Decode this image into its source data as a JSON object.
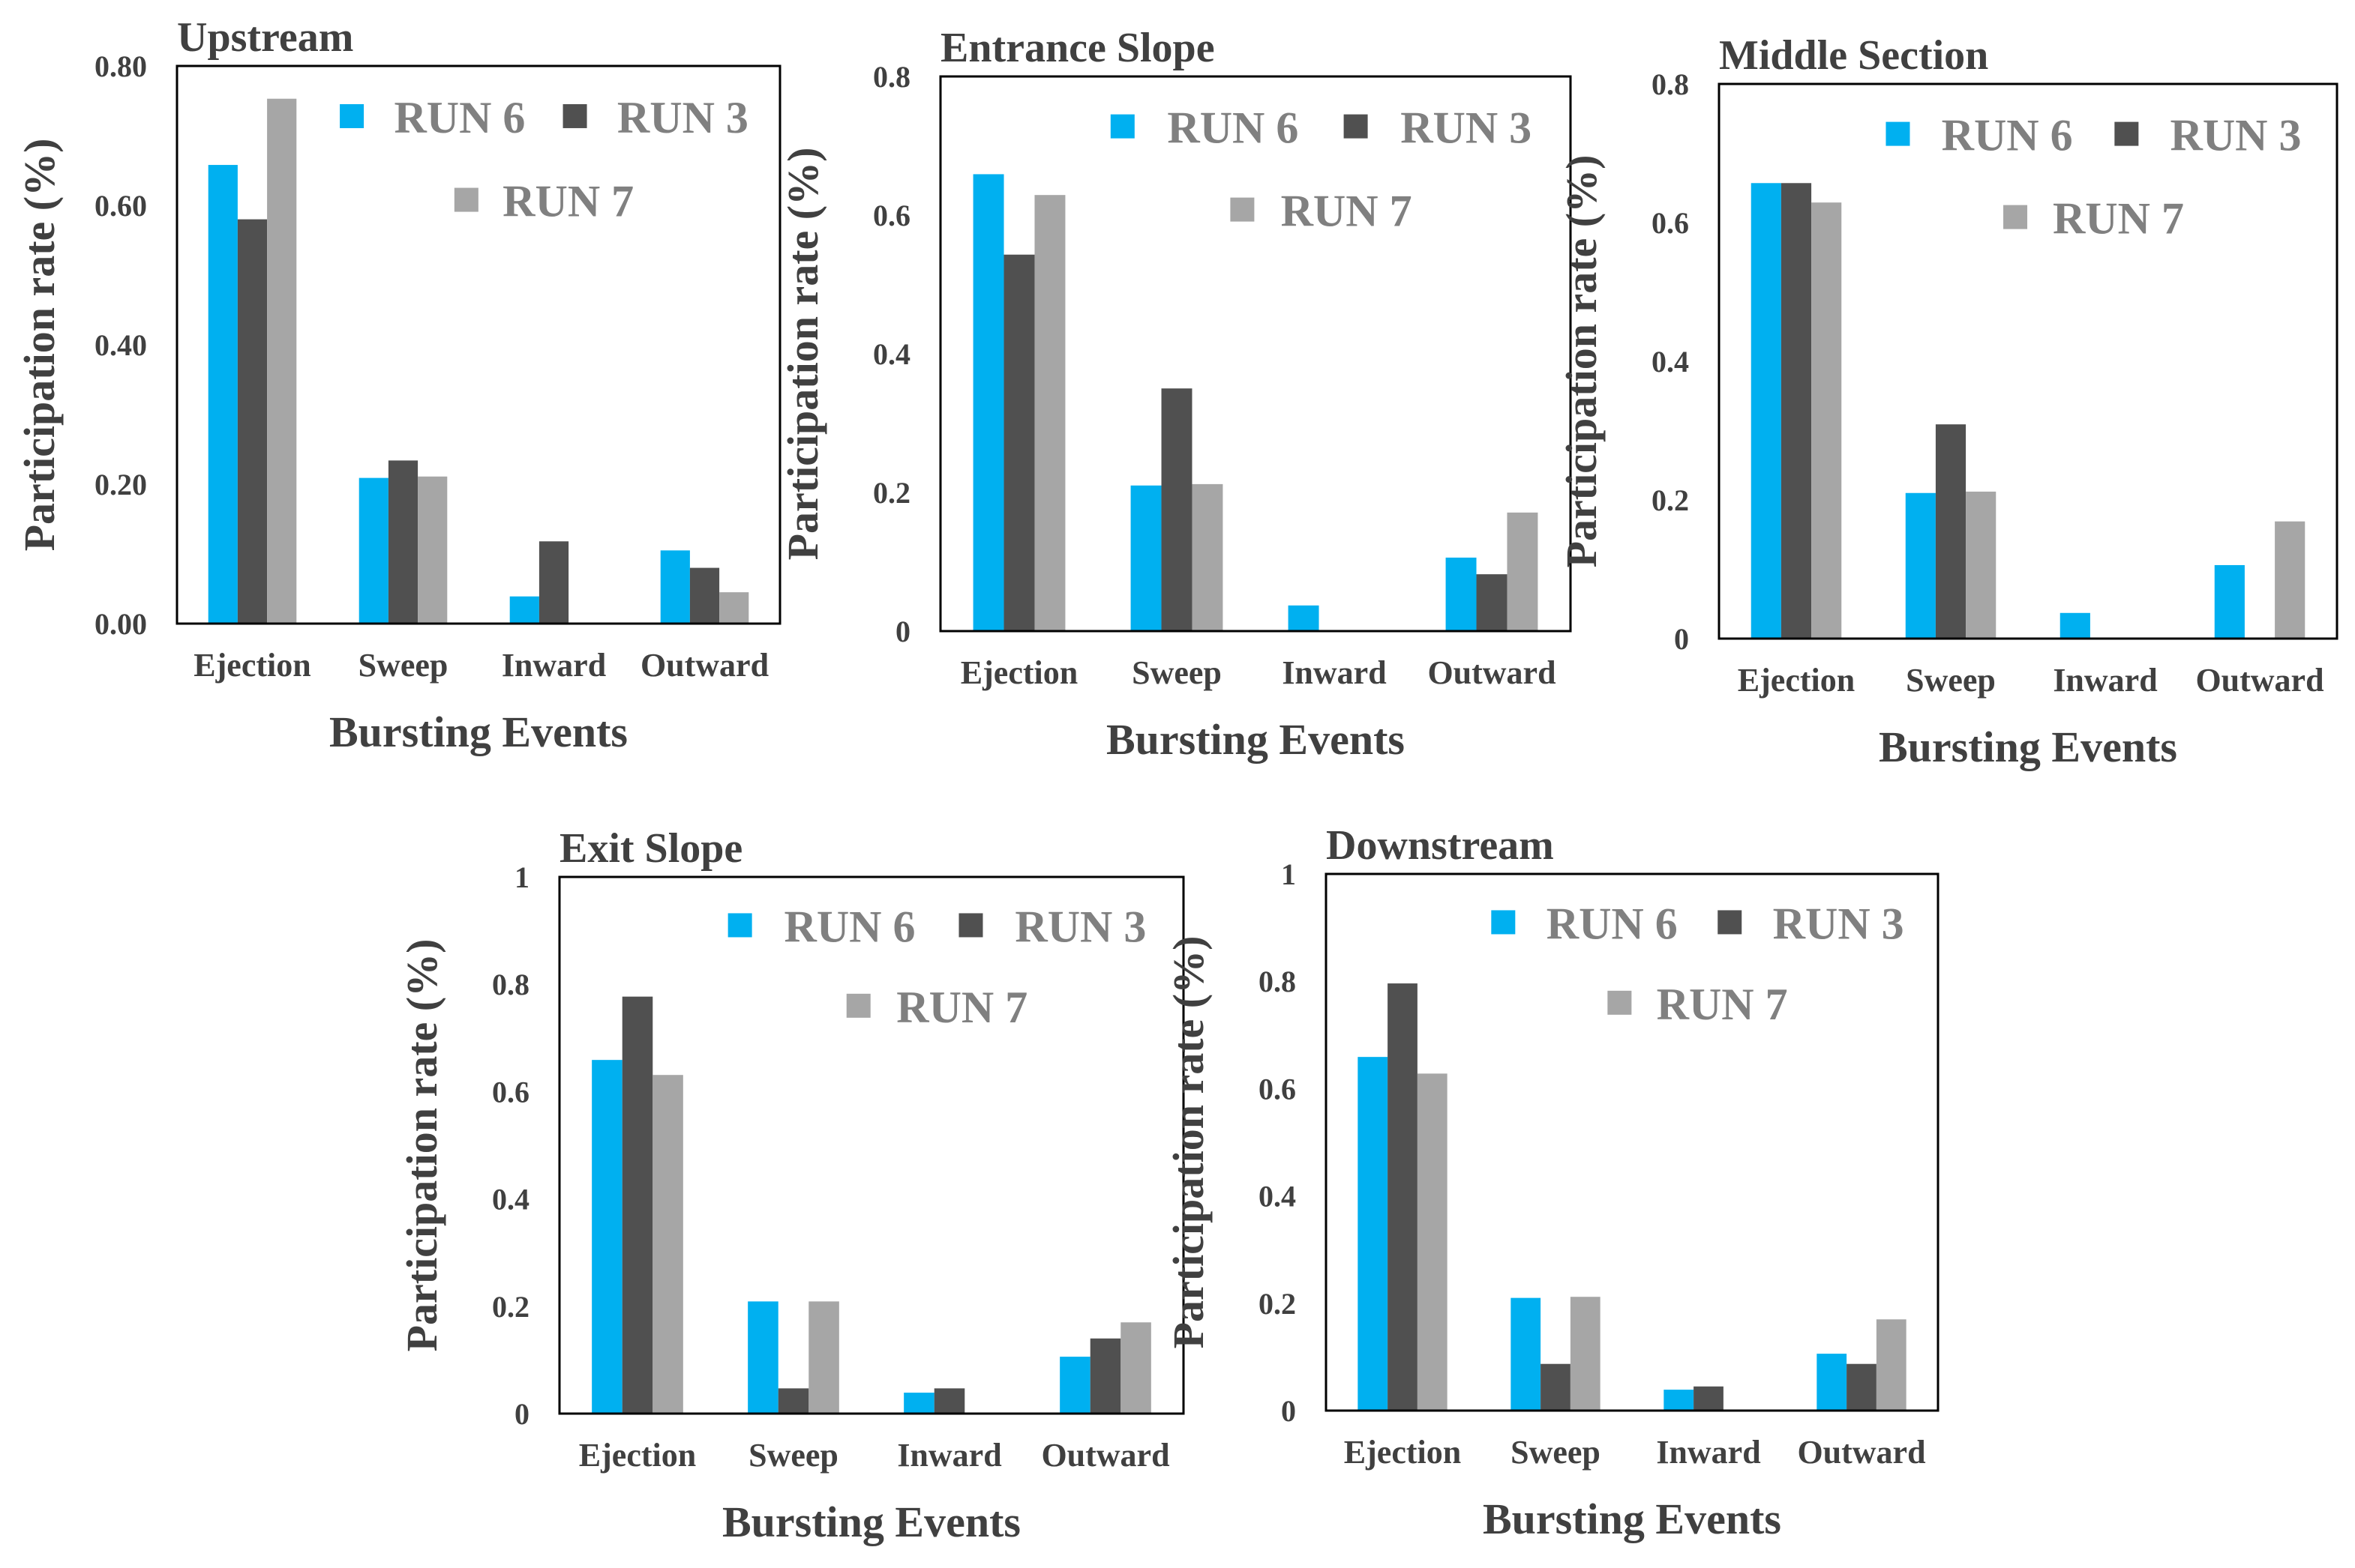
{
  "colors": {
    "RUN 6": "#00B0F0",
    "RUN 3": "#505050",
    "RUN 7": "#A6A6A6",
    "text": "#404040",
    "legend_text": "#808080"
  },
  "chart_data": [
    {
      "type": "bar",
      "title": "Upstream",
      "xlabel": "Bursting Events",
      "ylabel": "Participation rate (%)",
      "categories": [
        "Ejection",
        "Sweep",
        "Inward",
        "Outward"
      ],
      "ylim": [
        0,
        0.8
      ],
      "yticks": [
        "0.00",
        "0.20",
        "0.40",
        "0.60",
        "0.80"
      ],
      "ytick_values": [
        0,
        0.2,
        0.4,
        0.6,
        0.8
      ],
      "legend": "top-right",
      "grid": false,
      "series": [
        {
          "name": "RUN 6",
          "values": [
            0.658,
            0.209,
            0.039,
            0.105
          ]
        },
        {
          "name": "RUN 3",
          "values": [
            0.58,
            0.234,
            0.118,
            0.08
          ]
        },
        {
          "name": "RUN 7",
          "values": [
            0.753,
            0.211,
            0,
            0.045
          ]
        }
      ]
    },
    {
      "type": "bar",
      "title": "Entrance Slope",
      "xlabel": "Bursting Events",
      "ylabel": "Participation rate (%)",
      "categories": [
        "Ejection",
        "Sweep",
        "Inward",
        "Outward"
      ],
      "ylim": [
        0,
        0.8
      ],
      "yticks": [
        "0",
        "0.2",
        "0.4",
        "0.6",
        "0.8"
      ],
      "ytick_values": [
        0,
        0.2,
        0.4,
        0.6,
        0.8
      ],
      "legend": "top-right",
      "grid": false,
      "series": [
        {
          "name": "RUN 6",
          "values": [
            0.659,
            0.21,
            0.037,
            0.106
          ]
        },
        {
          "name": "RUN 3",
          "values": [
            0.543,
            0.35,
            0,
            0.082
          ]
        },
        {
          "name": "RUN 7",
          "values": [
            0.629,
            0.212,
            0,
            0.171
          ]
        }
      ]
    },
    {
      "type": "bar",
      "title": "Middle Section",
      "xlabel": "Bursting Events",
      "ylabel": "Participation rate (%)",
      "categories": [
        "Ejection",
        "Sweep",
        "Inward",
        "Outward"
      ],
      "ylim": [
        0,
        0.8
      ],
      "yticks": [
        "0",
        "0.2",
        "0.4",
        "0.6",
        "0.8"
      ],
      "ytick_values": [
        0,
        0.2,
        0.4,
        0.6,
        0.8
      ],
      "legend": "top-right",
      "grid": false,
      "series": [
        {
          "name": "RUN 6",
          "values": [
            0.657,
            0.21,
            0.037,
            0.106
          ]
        },
        {
          "name": "RUN 3",
          "values": [
            0.657,
            0.309,
            0,
            0
          ]
        },
        {
          "name": "RUN 7",
          "values": [
            0.629,
            0.212,
            0,
            0.169
          ]
        }
      ]
    },
    {
      "type": "bar",
      "title": "Exit Slope",
      "xlabel": "Bursting Events",
      "ylabel": "Participation rate (%)",
      "categories": [
        "Ejection",
        "Sweep",
        "Inward",
        "Outward"
      ],
      "ylim": [
        0,
        1
      ],
      "yticks": [
        "0",
        "0.2",
        "0.4",
        "0.6",
        "0.8",
        "1"
      ],
      "ytick_values": [
        0,
        0.2,
        0.4,
        0.6,
        0.8,
        1
      ],
      "legend": "top-right",
      "grid": false,
      "series": [
        {
          "name": "RUN 6",
          "values": [
            0.659,
            0.209,
            0.039,
            0.106
          ]
        },
        {
          "name": "RUN 3",
          "values": [
            0.777,
            0.047,
            0.047,
            0.14
          ]
        },
        {
          "name": "RUN 7",
          "values": [
            0.631,
            0.209,
            0,
            0.17
          ]
        }
      ]
    },
    {
      "type": "bar",
      "title": "Downstream",
      "xlabel": "Bursting Events",
      "ylabel": "Participation rate (%)",
      "categories": [
        "Ejection",
        "Sweep",
        "Inward",
        "Outward"
      ],
      "ylim": [
        0,
        1
      ],
      "yticks": [
        "0",
        "0.2",
        "0.4",
        "0.6",
        "0.8",
        "1"
      ],
      "ytick_values": [
        0,
        0.2,
        0.4,
        0.6,
        0.8,
        1
      ],
      "legend": "top-right",
      "grid": false,
      "series": [
        {
          "name": "RUN 6",
          "values": [
            0.659,
            0.21,
            0.039,
            0.106
          ]
        },
        {
          "name": "RUN 3",
          "values": [
            0.796,
            0.087,
            0.045,
            0.087
          ]
        },
        {
          "name": "RUN 7",
          "values": [
            0.628,
            0.212,
            0,
            0.17
          ]
        }
      ]
    }
  ]
}
